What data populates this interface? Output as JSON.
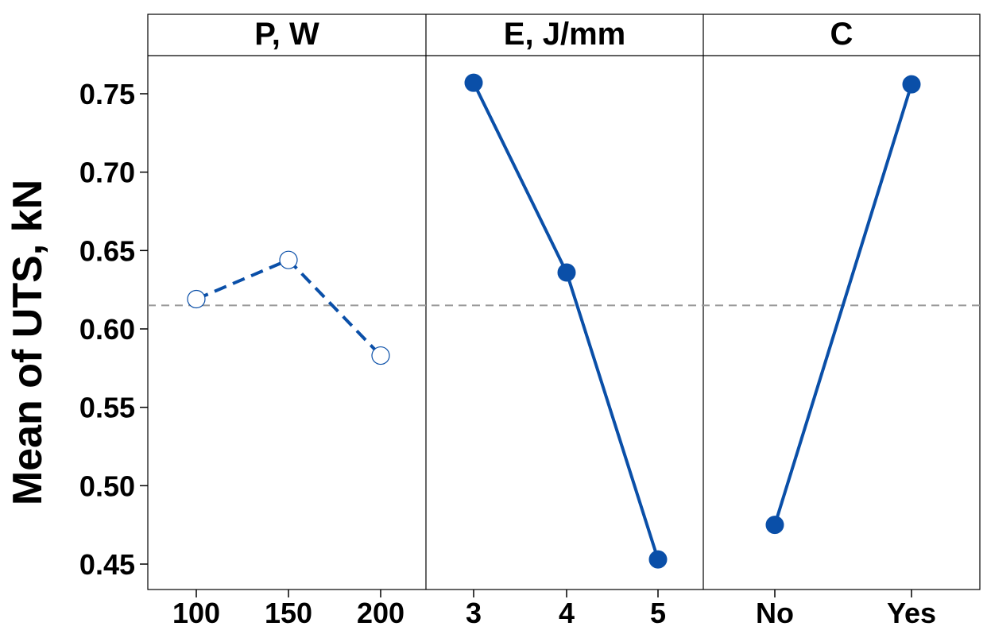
{
  "chart_data": {
    "type": "line",
    "title": "",
    "ylabel": "Mean of UTS, kN",
    "ylim": [
      0.44,
      0.775
    ],
    "yticks": [
      "0.75",
      "0.70",
      "0.65",
      "0.60",
      "0.55",
      "0.50",
      "0.45"
    ],
    "reference_line": {
      "value": 0.615,
      "style": "dashed",
      "color": "#999999"
    },
    "colors": {
      "line": "#0a4fa8",
      "frame": "#000000"
    },
    "grid": false,
    "panels": [
      {
        "title": "P, W",
        "categories": [
          "100",
          "150",
          "200"
        ],
        "values": [
          0.619,
          0.644,
          0.583
        ],
        "line_style": "dashed",
        "marker": "open-circle"
      },
      {
        "title": "E, J/mm",
        "categories": [
          "3",
          "4",
          "5"
        ],
        "values": [
          0.757,
          0.636,
          0.453
        ],
        "line_style": "solid",
        "marker": "filled-circle"
      },
      {
        "title": "C",
        "categories": [
          "No",
          "Yes"
        ],
        "values": [
          0.475,
          0.756
        ],
        "line_style": "solid",
        "marker": "filled-circle"
      }
    ]
  }
}
